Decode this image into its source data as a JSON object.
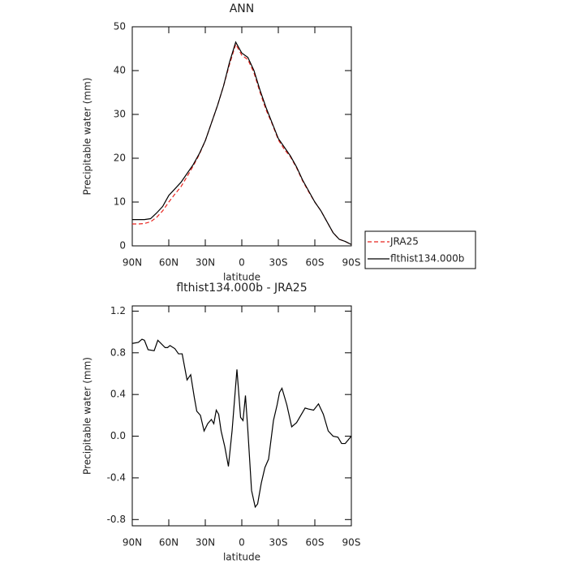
{
  "chart_data": [
    {
      "type": "line",
      "title": "ANN",
      "x_label": "latitude",
      "y_label": "Precipitable water (mm)",
      "x": [
        90,
        85,
        80,
        75,
        70,
        65,
        60,
        55,
        50,
        45,
        40,
        35,
        30,
        25,
        20,
        15,
        10,
        5,
        0,
        -5,
        -10,
        -15,
        -20,
        -25,
        -30,
        -35,
        -40,
        -45,
        -50,
        -55,
        -60,
        -65,
        -70,
        -75,
        -80,
        -85,
        -90
      ],
      "series": [
        {
          "name": "JRA25",
          "color": "#e8251f",
          "dashed": true,
          "values": [
            5.0,
            5.0,
            5.1,
            5.5,
            6.5,
            8.0,
            10.0,
            11.8,
            13.5,
            15.8,
            18.2,
            20.8,
            24.0,
            28.0,
            32.0,
            36.5,
            41.5,
            46.0,
            43.5,
            42.5,
            39.5,
            35.0,
            31.0,
            27.8,
            24.2,
            22.0,
            20.3,
            17.8,
            14.8,
            12.3,
            10.0,
            8.0,
            5.5,
            3.0,
            1.5,
            1.0,
            0.3
          ]
        },
        {
          "name": "flthist134.000b",
          "color": "#000000",
          "dashed": false,
          "values": [
            6.0,
            6.0,
            6.0,
            6.2,
            7.5,
            9.0,
            11.5,
            13.0,
            14.5,
            16.5,
            18.5,
            21.0,
            24.0,
            28.0,
            32.0,
            36.5,
            42.0,
            46.5,
            44.0,
            43.0,
            40.0,
            35.5,
            31.5,
            28.0,
            24.5,
            22.5,
            20.5,
            18.0,
            15.0,
            12.5,
            10.0,
            8.0,
            5.5,
            3.0,
            1.5,
            1.0,
            0.3
          ]
        }
      ],
      "xlim": [
        90,
        -90
      ],
      "xticks": [
        {
          "value": 90,
          "label": "90N"
        },
        {
          "value": 60,
          "label": "60N"
        },
        {
          "value": 30,
          "label": "30N"
        },
        0,
        {
          "value": -30,
          "label": "30S"
        },
        {
          "value": -60,
          "label": "60S"
        },
        {
          "value": -90,
          "label": "90S"
        }
      ],
      "ylim": [
        0,
        50
      ],
      "yticks": [
        0,
        10,
        20,
        30,
        40,
        50
      ],
      "legend": "right"
    },
    {
      "type": "line",
      "title": "flthist134.000b - JRA25",
      "x_label": "latitude",
      "y_label": "Precipitable water (mm)",
      "x": [
        90,
        85,
        82,
        80,
        77,
        72,
        69,
        63,
        61,
        59,
        55,
        52,
        49,
        45,
        42,
        39,
        37,
        34,
        31,
        28,
        25,
        23,
        21,
        19,
        17,
        14,
        11,
        8,
        4,
        1,
        -1,
        -3,
        -5,
        -8,
        -11,
        -13,
        -16,
        -19,
        -22,
        -26,
        -29,
        -31,
        -33,
        -37,
        -41,
        -45,
        -49,
        -52,
        -55,
        -59,
        -63,
        -67,
        -71,
        -75,
        -79,
        -82,
        -85,
        -90
      ],
      "values": [
        0.89,
        0.9,
        0.93,
        0.92,
        0.83,
        0.82,
        0.92,
        0.85,
        0.85,
        0.87,
        0.84,
        0.79,
        0.79,
        0.54,
        0.59,
        0.37,
        0.24,
        0.2,
        0.05,
        0.12,
        0.16,
        0.12,
        0.25,
        0.21,
        0.05,
        -0.1,
        -0.29,
        0.05,
        0.64,
        0.18,
        0.15,
        0.39,
        0.05,
        -0.52,
        -0.68,
        -0.65,
        -0.45,
        -0.3,
        -0.22,
        0.15,
        0.3,
        0.42,
        0.46,
        0.3,
        0.09,
        0.13,
        0.21,
        0.27,
        0.26,
        0.25,
        0.31,
        0.21,
        0.05,
        0.0,
        -0.01,
        -0.07,
        -0.07,
        0.0
      ],
      "color": "#000000",
      "xlim": [
        90,
        -90
      ],
      "xticks": [
        {
          "value": 90,
          "label": "90N"
        },
        {
          "value": 60,
          "label": "60N"
        },
        {
          "value": 30,
          "label": "30N"
        },
        0,
        {
          "value": -30,
          "label": "30S"
        },
        {
          "value": -60,
          "label": "60S"
        },
        {
          "value": -90,
          "label": "90S"
        }
      ],
      "ylim": [
        -0.86,
        1.25
      ],
      "yticks": [
        -0.8,
        -0.4,
        {
          "value": 0,
          "label": "0.0"
        },
        0.4,
        0.8,
        1.2
      ]
    }
  ]
}
